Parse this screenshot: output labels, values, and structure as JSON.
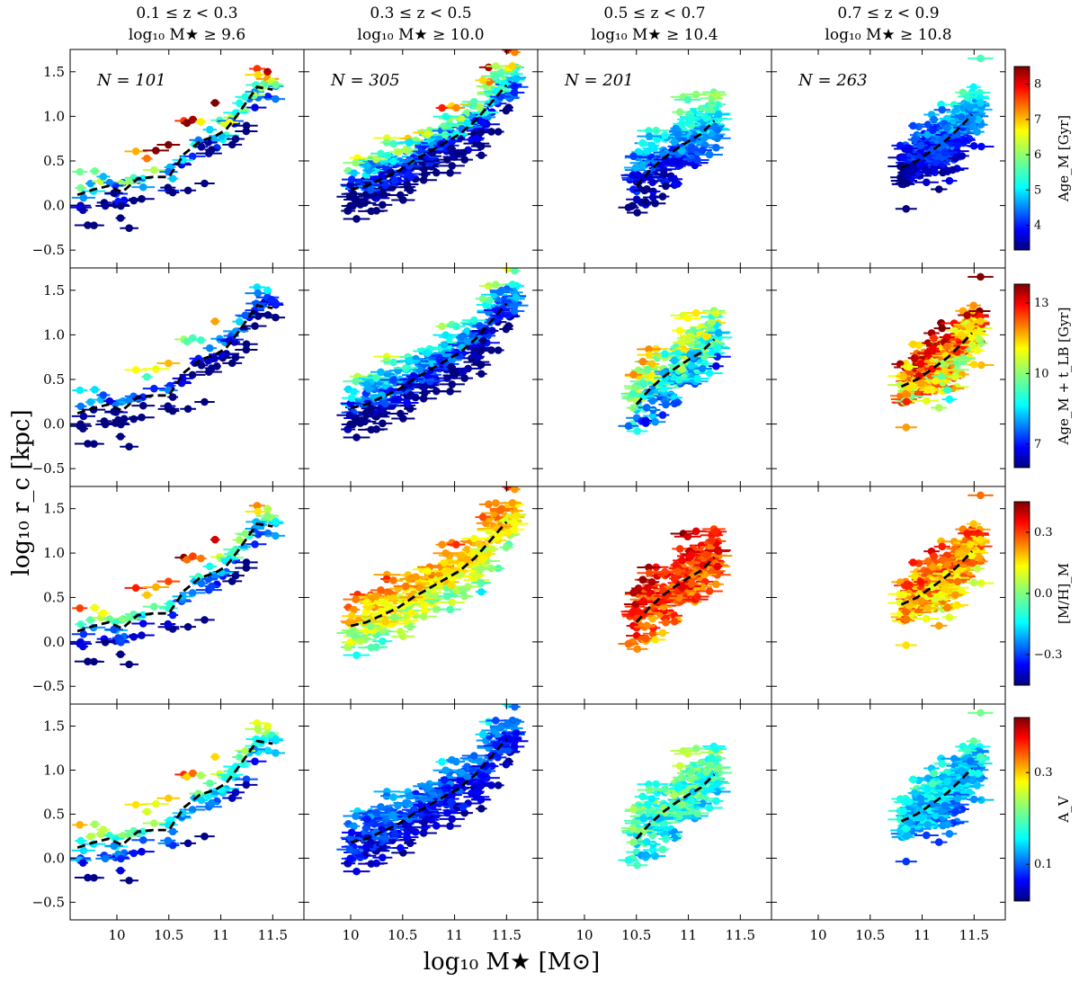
{
  "chart_data": {
    "type": "scatter",
    "xlabel": "log₁₀ M★ [M⊙]",
    "ylabel": "log₁₀ r_c [kpc]",
    "xlim": [
      9.55,
      11.8
    ],
    "ylim": [
      -0.7,
      1.75
    ],
    "x_ticks": [
      10,
      10.5,
      11,
      11.5
    ],
    "x_tick_labels": [
      "10",
      "10.5",
      "11",
      "11.5"
    ],
    "y_ticks": [
      -0.5,
      0,
      0.5,
      1,
      1.5
    ],
    "y_tick_labels": [
      "−0.5",
      "0.0",
      "0.5",
      "1.0",
      "1.5"
    ],
    "columns": [
      {
        "redshift_label": "0.1 ≤ z < 0.3",
        "mass_cut_label": "log₁₀ M★ ≥ 9.6",
        "n_label": "N = 101",
        "n": 101,
        "median_x": [
          9.62,
          9.78,
          9.92,
          10.05,
          10.2,
          10.35,
          10.5,
          10.65,
          10.8,
          10.95,
          11.05,
          11.15,
          11.35,
          11.5
        ],
        "median_y": [
          0.12,
          0.18,
          0.22,
          0.15,
          0.3,
          0.32,
          0.32,
          0.58,
          0.72,
          0.78,
          0.85,
          1.0,
          1.33,
          1.3
        ]
      },
      {
        "redshift_label": "0.3 ≤ z < 0.5",
        "mass_cut_label": "log₁₀ M★ ≥ 10.0",
        "n_label": "N = 305",
        "n": 305,
        "median_x": [
          10.0,
          10.15,
          10.3,
          10.45,
          10.6,
          10.75,
          10.9,
          11.05,
          11.2,
          11.35,
          11.5
        ],
        "median_y": [
          0.18,
          0.22,
          0.3,
          0.38,
          0.5,
          0.6,
          0.7,
          0.8,
          0.95,
          1.15,
          1.35
        ]
      },
      {
        "redshift_label": "0.5 ≤ z < 0.7",
        "mass_cut_label": "log₁₀ M★ ≥ 10.4",
        "n_label": "N = 201",
        "n": 201,
        "median_x": [
          10.5,
          10.62,
          10.75,
          10.88,
          11.0,
          11.12,
          11.25
        ],
        "median_y": [
          0.22,
          0.38,
          0.52,
          0.63,
          0.72,
          0.8,
          0.95
        ]
      },
      {
        "redshift_label": "0.7 ≤ z < 0.9",
        "mass_cut_label": "log₁₀ M★ ≥ 10.8",
        "n_label": "N = 263",
        "n": 263,
        "median_x": [
          10.8,
          10.95,
          11.1,
          11.25,
          11.4,
          11.48
        ],
        "median_y": [
          0.42,
          0.5,
          0.62,
          0.75,
          0.92,
          1.02
        ]
      }
    ],
    "rows": [
      {
        "property": "Age_M",
        "colorbar_label": "Age_M [Gyr]",
        "colorbar_range": [
          3.3,
          8.5
        ],
        "colorbar_ticks": [
          4,
          5,
          6,
          7,
          8
        ],
        "colorbar_tick_labels": [
          "4",
          "5",
          "6",
          "7",
          "8"
        ]
      },
      {
        "property": "Age_M + t_LB",
        "colorbar_label": "Age_M + t_LB [Gyr]",
        "colorbar_range": [
          6.0,
          13.8
        ],
        "colorbar_ticks": [
          7,
          10,
          13
        ],
        "colorbar_tick_labels": [
          "7",
          "10",
          "13"
        ]
      },
      {
        "property": "[M/H]_M",
        "colorbar_label": "[M/H]_M",
        "colorbar_range": [
          -0.45,
          0.45
        ],
        "colorbar_ticks": [
          -0.3,
          0.0,
          0.3
        ],
        "colorbar_tick_labels": [
          "−0.3",
          "0.0",
          "0.3"
        ]
      },
      {
        "property": "A_V",
        "colorbar_label": "A_V",
        "colorbar_range": [
          0.02,
          0.42
        ],
        "colorbar_ticks": [
          0.1,
          0.3
        ],
        "colorbar_tick_labels": [
          "0.1",
          "0.3"
        ]
      }
    ],
    "colormap": "jet",
    "marker_style": "filled circles with horizontal error bars",
    "median_line_style": "black dashed",
    "median_line_color": "#000000"
  }
}
